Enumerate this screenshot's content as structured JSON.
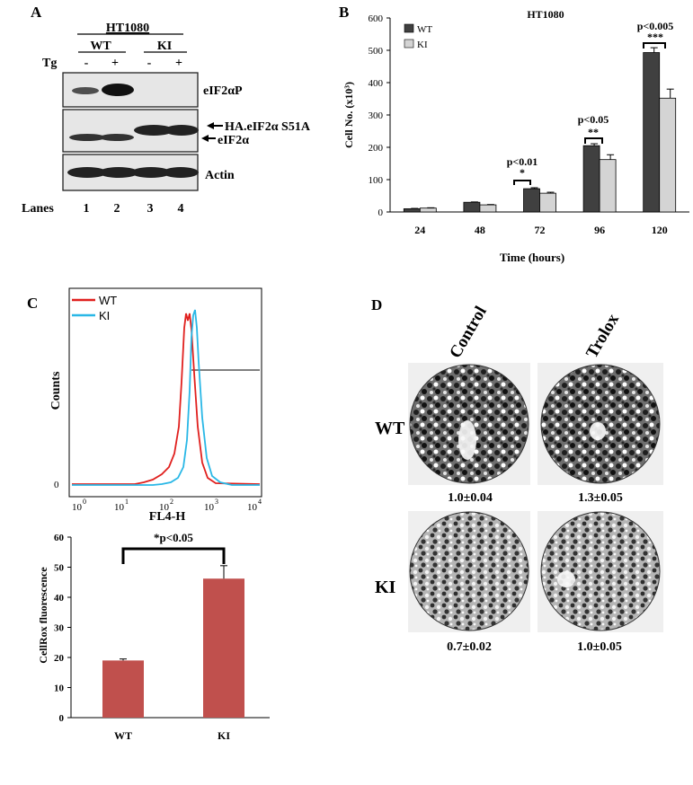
{
  "figure": {
    "panel_a": {
      "letter": "A",
      "cell_line": "HT1080",
      "groups": [
        "WT",
        "KI"
      ],
      "treatment_label": "Tg",
      "treatment_signs": [
        "-",
        "+",
        "-",
        "+"
      ],
      "bands": [
        "eIF2αP",
        "HA.eIF2α S51A",
        "eIF2α",
        "Actin"
      ],
      "lanes_label": "Lanes",
      "lane_numbers": [
        "1",
        "2",
        "3",
        "4"
      ]
    },
    "panel_b": {
      "letter": "B",
      "significance": [
        {
          "p": "p<0.01",
          "stars": "*"
        },
        {
          "p": "p<0.05",
          "stars": "**"
        },
        {
          "p": "p<0.005",
          "stars": "***"
        }
      ]
    },
    "panel_c": {
      "letter": "C",
      "hist_ylabel": "Counts",
      "hist_xlabel": "FL4-H",
      "hist_zero": "0",
      "legend": [
        "WT",
        "KI"
      ],
      "colors": {
        "wt": "#e0201e",
        "ki": "#29b7e6"
      },
      "log_ticks": [
        "10",
        "10",
        "10",
        "10",
        "10"
      ],
      "log_exponents": [
        "0",
        "1",
        "2",
        "3",
        "4"
      ],
      "bar_significance": "*p<0.05"
    },
    "panel_d": {
      "letter": "D",
      "columns": [
        "Control",
        "Trolox"
      ],
      "rows": [
        "WT",
        "KI"
      ],
      "values": [
        [
          "1.0±0.04",
          "1.3±0.05"
        ],
        [
          "0.7±0.02",
          "1.0±0.05"
        ]
      ]
    }
  },
  "chart_data": [
    {
      "type": "bar",
      "title": "HT1080",
      "xlabel": "Time (hours)",
      "ylabel": "Cell No. (x10³)",
      "ylim": [
        0,
        600
      ],
      "yticks": [
        "0",
        "100",
        "200",
        "300",
        "400",
        "500",
        "600"
      ],
      "categories": [
        "24",
        "48",
        "72",
        "96",
        "120"
      ],
      "series": [
        {
          "name": "WT",
          "color": "#404040",
          "values": [
            10,
            30,
            72,
            205,
            493
          ],
          "errors": [
            1,
            1,
            3,
            6,
            15
          ]
        },
        {
          "name": "KI",
          "color": "#d4d4d4",
          "values": [
            12,
            22,
            58,
            162,
            352
          ],
          "errors": [
            1,
            1,
            3,
            15,
            28
          ]
        }
      ]
    },
    {
      "type": "bar",
      "title": "",
      "xlabel": "",
      "ylabel": "CellRox fluorescence",
      "ylim": [
        0,
        60
      ],
      "yticks": [
        "0",
        "10",
        "20",
        "30",
        "40",
        "50",
        "60"
      ],
      "categories": [
        "WT",
        "KI"
      ],
      "color": "#c0504d",
      "values": [
        19,
        46.2
      ],
      "errors": [
        0.5,
        4.3
      ]
    }
  ]
}
